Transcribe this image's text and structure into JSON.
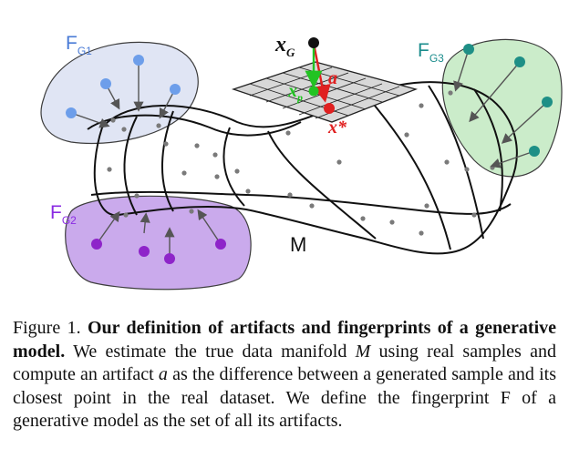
{
  "figure": {
    "groups": {
      "g1": {
        "letter": "F",
        "sub": "G1",
        "color": "#4a7bd6",
        "fill": "#dfe4f4",
        "dot": "#6d9eea"
      },
      "g2": {
        "letter": "F",
        "sub": "G2",
        "color": "#8a2be2",
        "fill": "#c8a6ec",
        "dot": "#8e24c9"
      },
      "g3": {
        "letter": "F",
        "sub": "G3",
        "color": "#1a8c8c",
        "fill": "#c9ecc8",
        "dot": "#1e8f86"
      }
    },
    "manifold_label": "M",
    "xg_label": "x",
    "xg_sub": "G",
    "xp_label": "x",
    "xp_sub": "p",
    "a_label": "a",
    "xstar_label": "x*",
    "colors": {
      "red": "#e02020",
      "green": "#22c322",
      "grid": "#d8d8d8"
    }
  },
  "caption": {
    "lead": "Figure 1. ",
    "bold": "Our definition of artifacts and fingerprints of a generative model.",
    "t1": " We estimate the true data manifold ",
    "math_m": "M",
    "t2": " using real samples and compute an artifact ",
    "math_a": "a",
    "t3": " as the difference between a generated sample and its closest point in the real dataset. We define the fingerprint F of a generative model as the set of all its artifacts."
  }
}
